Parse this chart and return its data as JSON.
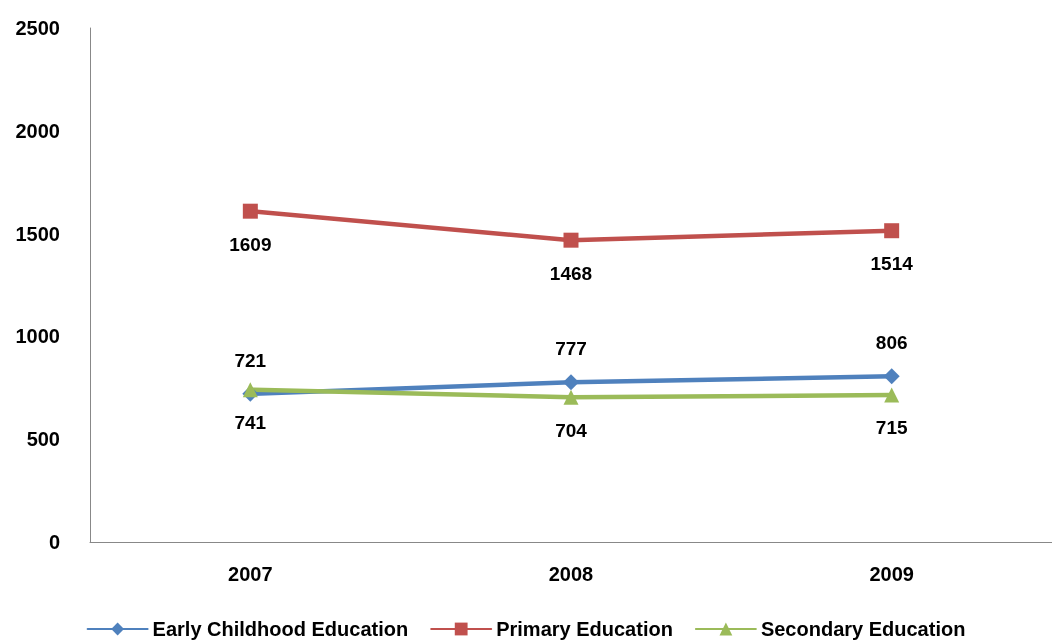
{
  "chart_data": {
    "type": "line",
    "categories": [
      "2007",
      "2008",
      "2009"
    ],
    "series": [
      {
        "name": "Early Childhood Education",
        "color": "#4f81bd",
        "marker": "diamond",
        "values": [
          721,
          777,
          806
        ]
      },
      {
        "name": "Primary Education",
        "color": "#c0504d",
        "marker": "square",
        "values": [
          1609,
          1468,
          1514
        ]
      },
      {
        "name": "Secondary Education",
        "color": "#9bbb59",
        "marker": "triangle",
        "values": [
          741,
          704,
          715
        ]
      }
    ],
    "ylim": [
      0,
      2500
    ],
    "yticks": [
      0,
      500,
      1000,
      1500,
      2000,
      2500
    ],
    "grid": false,
    "legend": "bottom",
    "data_labels": true
  }
}
